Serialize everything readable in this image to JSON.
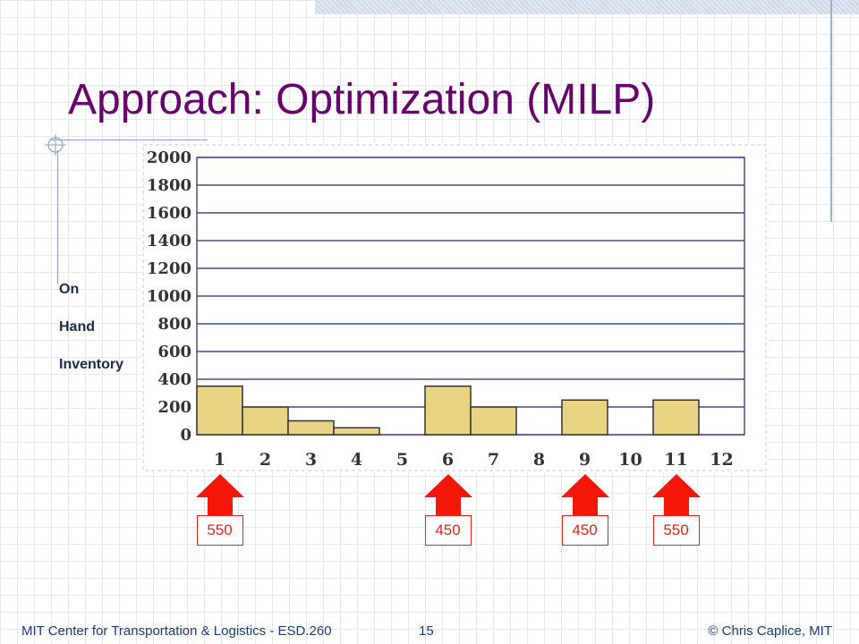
{
  "slide": {
    "title": "Approach: Optimization (MILP)",
    "ylabel_lines": [
      "On",
      "Hand",
      "Inventory"
    ],
    "footer_left": "MIT Center for Transportation & Logistics - ESD.260",
    "page_number": "15",
    "footer_right": "© Chris Caplice, MIT"
  },
  "colors": {
    "title": "#66006a",
    "bar_fill": "#e8d483",
    "bar_stroke": "#333333",
    "grid": "#1f2a6b",
    "arrow": "#f5160a",
    "footer": "#1d3b72"
  },
  "chart_data": {
    "type": "bar",
    "categories": [
      "1",
      "2",
      "3",
      "4",
      "5",
      "6",
      "7",
      "8",
      "9",
      "10",
      "11",
      "12"
    ],
    "values": [
      350,
      200,
      100,
      50,
      0,
      350,
      200,
      0,
      250,
      0,
      250,
      0
    ],
    "ylabel": "On Hand Inventory",
    "ylim": [
      0,
      2000
    ],
    "yticks": [
      0,
      200,
      400,
      600,
      800,
      1000,
      1200,
      1400,
      1600,
      1800,
      2000
    ],
    "grid": true,
    "orders": [
      {
        "period": "1",
        "quantity": "550"
      },
      {
        "period": "6",
        "quantity": "450"
      },
      {
        "period": "9",
        "quantity": "450"
      },
      {
        "period": "11",
        "quantity": "550"
      }
    ]
  }
}
